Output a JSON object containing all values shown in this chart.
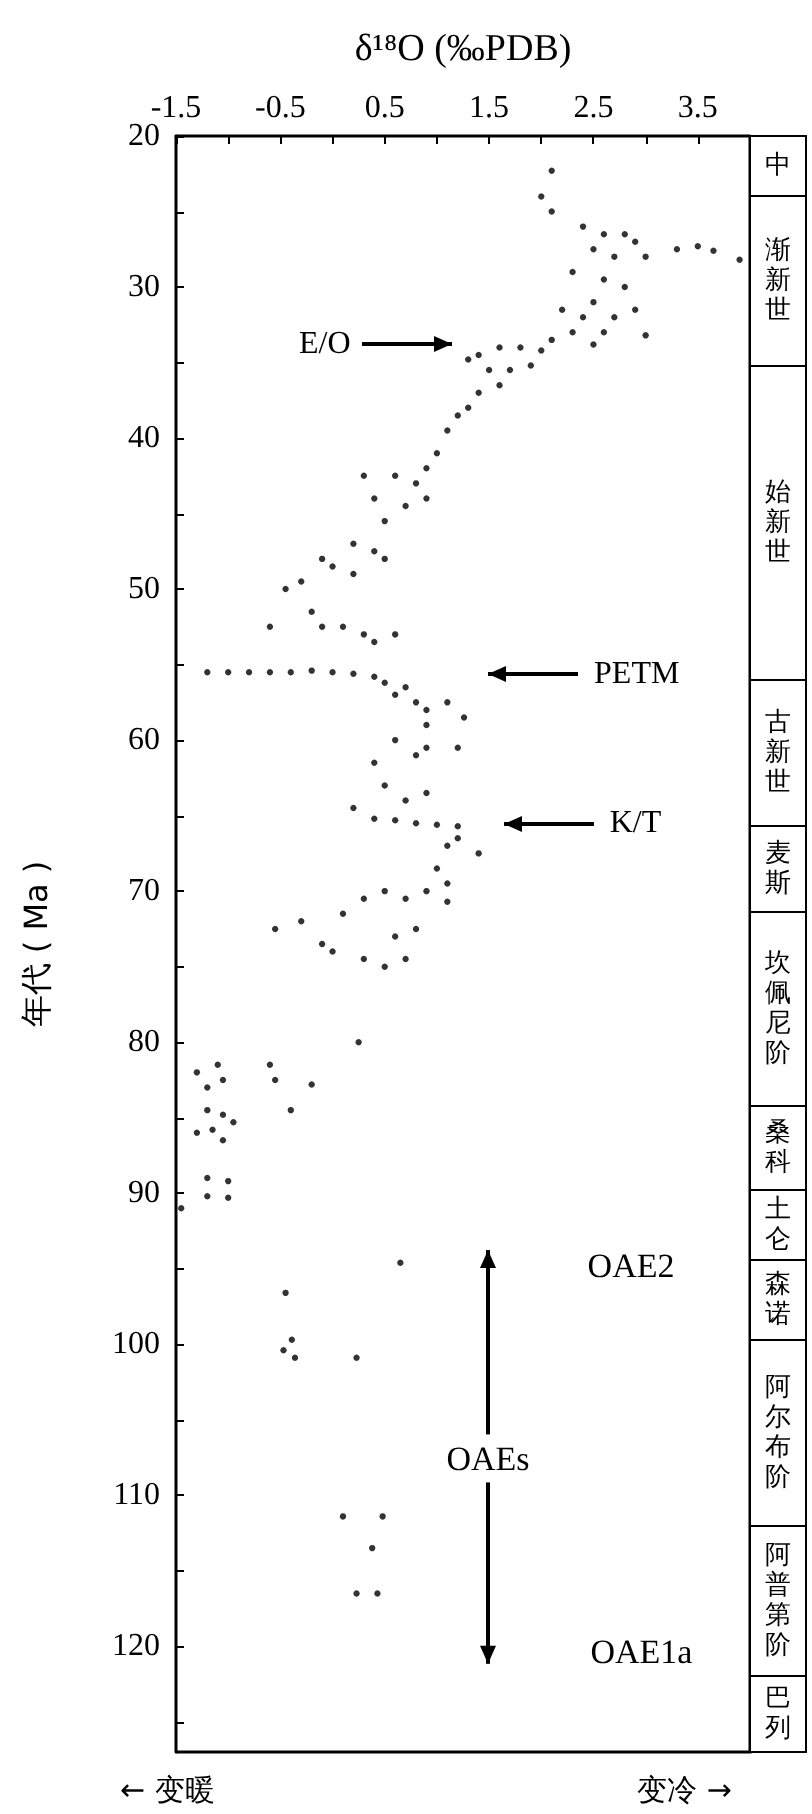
{
  "chart_data": [
    {
      "type": "scatter",
      "xlabel": "δ¹⁸O (‰PDB)",
      "ylabel": "年代 ( Ma )",
      "xlim": [
        -1.5,
        4
      ],
      "xticks": [
        -1.5,
        {
          "value": -1,
          "label": null
        },
        -0.5,
        {
          "value": 0,
          "label": null
        },
        0.5,
        {
          "value": 1,
          "label": null
        },
        1.5,
        {
          "value": 2,
          "label": null
        },
        2.5,
        {
          "value": 3,
          "label": null
        },
        3.5
      ],
      "ylim": [
        127,
        20
      ],
      "yticks": [
        20,
        {
          "value": 25,
          "label": null
        },
        30,
        {
          "value": 35,
          "label": null
        },
        40,
        {
          "value": 45,
          "label": null
        },
        50,
        {
          "value": 55,
          "label": null
        },
        60,
        {
          "value": 65,
          "label": null
        },
        70,
        {
          "value": 75,
          "label": null
        },
        80,
        {
          "value": 85,
          "label": null
        },
        90,
        {
          "value": 95,
          "label": null
        },
        100,
        {
          "value": 105,
          "label": null
        },
        110,
        {
          "value": 115,
          "label": null
        },
        120,
        {
          "value": 125,
          "label": null
        }
      ],
      "grid": false,
      "marker": "circle",
      "series": [
        {
          "color": "#000000",
          "x": [
            2.1,
            2.0,
            2.1,
            2.4,
            2.6,
            2.8,
            2.9,
            2.5,
            2.7,
            3.0,
            3.3,
            3.5,
            3.65,
            3.9,
            2.3,
            2.6,
            2.8,
            2.5,
            2.2,
            2.4,
            2.7,
            2.9,
            2.3,
            2.6,
            3.0,
            2.1,
            2.5,
            2.0,
            1.8,
            1.6,
            1.4,
            1.3,
            1.5,
            1.7,
            1.9,
            1.6,
            1.4,
            1.3,
            1.2,
            1.1,
            1.0,
            0.9,
            0.6,
            0.8,
            0.9,
            0.7,
            0.3,
            0.4,
            0.5,
            0.2,
            0.4,
            0.5,
            -0.1,
            0.0,
            0.2,
            -0.3,
            -0.45,
            -0.2,
            -0.1,
            0.1,
            0.3,
            0.4,
            -0.6,
            0.6,
            -1.2,
            -1.0,
            -0.8,
            -0.6,
            -0.4,
            -0.2,
            0.0,
            0.2,
            0.4,
            0.5,
            0.7,
            0.6,
            0.8,
            0.9,
            1.1,
            0.9,
            1.26,
            0.6,
            0.8,
            0.9,
            0.4,
            0.5,
            0.7,
            0.9,
            1.2,
            0.2,
            0.4,
            0.6,
            0.8,
            1.0,
            1.2,
            1.1,
            1.0,
            1.1,
            1.2,
            0.9,
            0.7,
            0.5,
            0.3,
            0.1,
            -0.3,
            -0.55,
            -0.1,
            0.0,
            0.3,
            0.5,
            0.6,
            0.8,
            1.1,
            0.7,
            1.4,
            -1.3,
            -1.1,
            -1.2,
            -1.05,
            -1.2,
            -1.05,
            -0.95,
            -1.3,
            -1.15,
            -1.05,
            -0.6,
            -0.55,
            -0.2,
            -0.4,
            0.25,
            -1.45,
            -1.2,
            -1.2,
            -1.0,
            -1.0,
            -0.45,
            0.65,
            -0.47,
            -0.39,
            -0.36,
            0.23,
            0.1,
            0.48,
            0.38,
            0.23,
            0.43
          ],
          "values": [
            22.3,
            24,
            25,
            26,
            26.5,
            26.5,
            27,
            27.5,
            28,
            28,
            27.5,
            27.3,
            27.6,
            28.2,
            29,
            29.5,
            30,
            31,
            31.5,
            32,
            32,
            31.5,
            33,
            33,
            33.2,
            33.5,
            33.8,
            34.2,
            34,
            34,
            34.5,
            34.8,
            35.5,
            35.5,
            35.2,
            36.5,
            37,
            38,
            38.5,
            39.5,
            41,
            42,
            42.5,
            43,
            44,
            44.5,
            42.5,
            44,
            45.5,
            47,
            47.5,
            48,
            48,
            48.5,
            49,
            49.5,
            50,
            51.5,
            52.5,
            52.5,
            53,
            53.5,
            52.5,
            53,
            55.5,
            55.5,
            55.5,
            55.5,
            55.5,
            55.4,
            55.5,
            55.6,
            55.8,
            56.2,
            56.5,
            57,
            57.5,
            58,
            57.5,
            59,
            58.5,
            60,
            61,
            60.5,
            61.5,
            63,
            64,
            63.5,
            60.5,
            64.5,
            65.2,
            65.3,
            65.5,
            65.6,
            65.7,
            67,
            68.5,
            69.5,
            66.5,
            70,
            70.5,
            70,
            70.5,
            71.5,
            72,
            72.5,
            73.5,
            74,
            74.5,
            75,
            73,
            72.5,
            70.7,
            74.5,
            67.5,
            82,
            81.5,
            83,
            82.5,
            84.5,
            84.8,
            85.3,
            86,
            85.8,
            86.5,
            81.5,
            82.5,
            82.8,
            84.5,
            80,
            91,
            89,
            90.2,
            89.2,
            90.3,
            96.6,
            94.6,
            100.4,
            99.7,
            100.9,
            100.9,
            111.4,
            111.4,
            113.5,
            116.5,
            116.5
          ]
        }
      ],
      "annotations": [
        "E/O",
        "PETM",
        "K/T",
        "OAE2",
        "OAEs",
        "OAE1a",
        "← 变暖",
        "变冷 →"
      ]
    },
    {
      "type": "other",
      "annotations": [
        "中",
        "渐新世",
        "始新世",
        "古新世",
        "麦斯",
        "坎佩尼阶",
        "桑科",
        "土仑",
        "森诺",
        "阿尔布阶",
        "阿普第阶",
        "巴列"
      ]
    }
  ]
}
